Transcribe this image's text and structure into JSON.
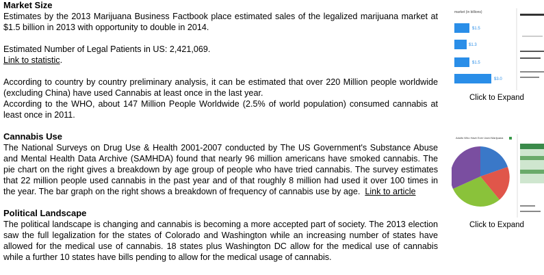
{
  "market_size": {
    "title": "Market Size",
    "estimates": "Estimates by the 2013 Marijuana Business Factbook place estimated sales of the legalized marijuana market at $1.5 billion in 2013 with opportunity to double in 2014.",
    "patients": "Estimated Number of Legal Patients in US: 2,421,069.",
    "link": "Link to statistic",
    "link_end": ".",
    "worldwide": "According to country by country preliminary analysis, it can be estimated that over 220 Million people worldwide (excluding China) have used Cannabis at least once in the last year.",
    "who": "According to the WHO, about 147 Million People Worldwide (2.5% of world population) consumed cannabis at least once in 2011."
  },
  "cannabis_use": {
    "title": "Cannabis Use",
    "text": "The National Surveys on Drug Use & Health 2001-2007 conducted by The US Government's Substance Abuse and Mental Health Data Archive (SAMHDA) found that nearly 96 million americans have smoked cannabis. The pie chart on the right gives a breakdown by age group of people who have tried cannabis. The survey estimates that 22 million people used cannabis in the past year and of that roughly 8 million had used it over 100 times in the year. The bar graph on the right shows a breakdown of frequency of cannabis use by age.",
    "link": "Link to article"
  },
  "political_landscape": {
    "title": "Political Landscape",
    "text": "The political landscape is changing and cannabis is becoming a more accepted part of society. The 2013 election saw the full legalization for the states of Colorado and Washington while an increasing number of states have allowed for the medical use of cannabis. 18 states plus Washington DC allow for the medical use of cannabis while a further 10 states have bills pending to allow for the medical usage of cannabis."
  },
  "thumbnails": [
    {
      "heading": "market (in billions)",
      "bar_labels": [
        "$1.5",
        "$1.3",
        "$1.5",
        "$3.0"
      ],
      "caption": "Click to Expand"
    },
    {
      "heading": "Adults Who Have Ever Used Marijuana",
      "caption": "Click to Expand"
    }
  ]
}
